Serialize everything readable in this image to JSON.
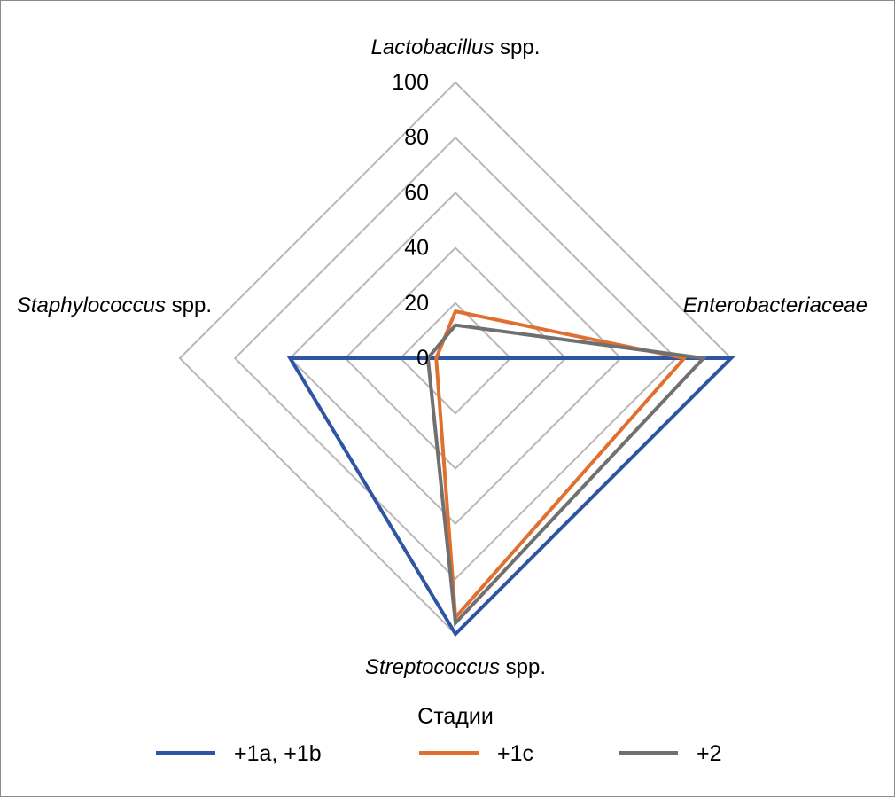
{
  "chart_data": {
    "type": "radar",
    "axes": [
      {
        "name_italic": "Lactobacillus",
        "name_suffix": " spp."
      },
      {
        "name_italic": "Enterobacteriaceae",
        "name_suffix": ""
      },
      {
        "name_italic": "Streptococcus",
        "name_suffix": " spp."
      },
      {
        "name_italic": "Staphylococcus",
        "name_suffix": " spp."
      }
    ],
    "r_ticks": [
      "0",
      "20",
      "40",
      "60",
      "80",
      "100"
    ],
    "r_range": [
      0,
      100
    ],
    "legend_title": "Стадии",
    "legend_position": "bottom",
    "series": [
      {
        "name": "+1a, +1b",
        "color": "#2e55a3",
        "values": [
          0,
          100,
          100,
          60
        ]
      },
      {
        "name": "+1c",
        "color": "#e07030",
        "values": [
          17,
          83,
          94,
          7
        ]
      },
      {
        "name": "+2",
        "color": "#707070",
        "values": [
          12,
          90,
          96,
          10
        ]
      }
    ],
    "grid_color": "#b8b8b8"
  }
}
